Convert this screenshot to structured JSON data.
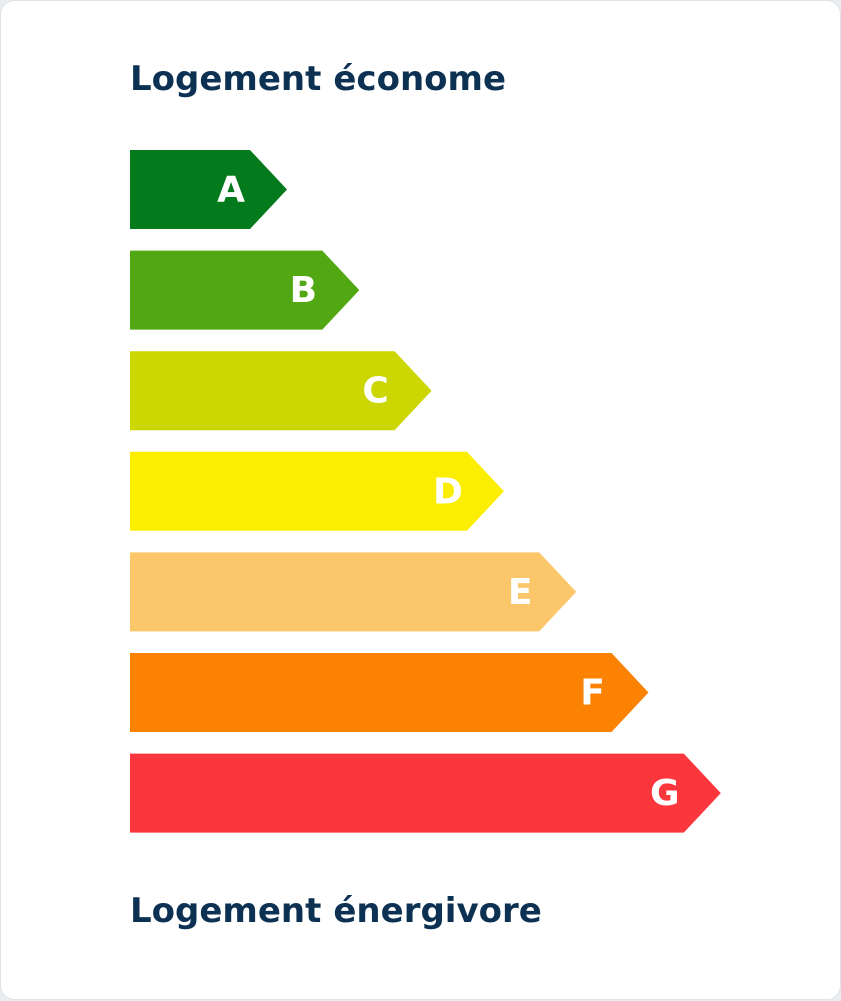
{
  "top_caption": {
    "lead": "Logement",
    "emphasis": "économe"
  },
  "classes": [
    {
      "label": "A",
      "color": "#037a1c"
    },
    {
      "label": "B",
      "color": "#52a812"
    },
    {
      "label": "C",
      "color": "#cbd603"
    },
    {
      "label": "D",
      "color": "#fbee01"
    },
    {
      "label": "E",
      "color": "#fcc76a"
    },
    {
      "label": "F",
      "color": "#fc8203"
    },
    {
      "label": "G",
      "color": "#fc363d"
    }
  ],
  "bottom_caption": {
    "lead": "Logement",
    "emphasis": "énergivore"
  }
}
